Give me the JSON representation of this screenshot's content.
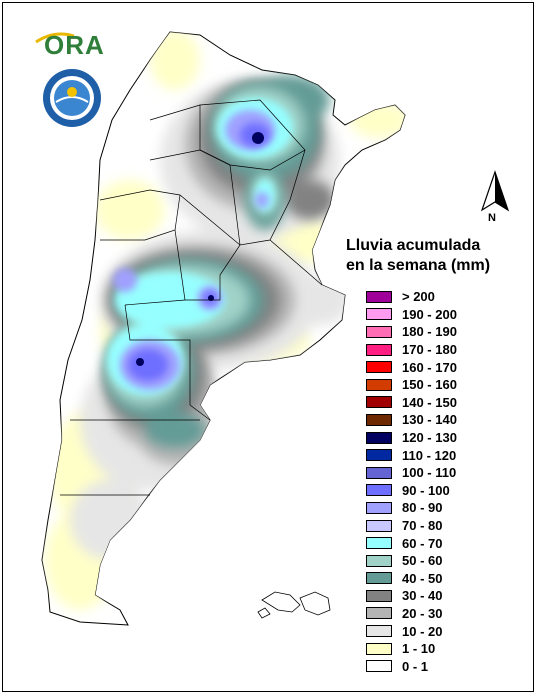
{
  "logo": {
    "text": "ORA"
  },
  "north_arrow": {
    "label": "N"
  },
  "legend": {
    "title_line1": "Lluvia acumulada",
    "title_line2": "en la semana (mm)",
    "items": [
      {
        "label": "> 200",
        "color": "#a0009a"
      },
      {
        "label": "190 - 200",
        "color": "#ff9cf0"
      },
      {
        "label": "180 - 190",
        "color": "#ff6eb4"
      },
      {
        "label": "170 - 180",
        "color": "#ff1e82"
      },
      {
        "label": "160 - 170",
        "color": "#ff0000"
      },
      {
        "label": "150 - 160",
        "color": "#d23c00"
      },
      {
        "label": "140 - 150",
        "color": "#a00000"
      },
      {
        "label": "130 - 140",
        "color": "#6e2800"
      },
      {
        "label": "120 - 130",
        "color": "#000060"
      },
      {
        "label": "110 - 120",
        "color": "#0028a0"
      },
      {
        "label": "100 - 110",
        "color": "#6464d2"
      },
      {
        "label": "90 - 100",
        "color": "#6e6eff"
      },
      {
        "label": "80 - 90",
        "color": "#a0a0ff"
      },
      {
        "label": "70 - 80",
        "color": "#c8c8ff"
      },
      {
        "label": "60 - 70",
        "color": "#96ffff"
      },
      {
        "label": "50 - 60",
        "color": "#a0d2c8"
      },
      {
        "label": "40 - 50",
        "color": "#649b96"
      },
      {
        "label": "30 - 40",
        "color": "#828282"
      },
      {
        "label": "20 - 30",
        "color": "#b4b4b4"
      },
      {
        "label": "10 - 20",
        "color": "#e6e6e6"
      },
      {
        "label": "1 - 10",
        "color": "#ffffc8"
      },
      {
        "label": "0 - 1",
        "color": "#ffffff"
      }
    ]
  }
}
